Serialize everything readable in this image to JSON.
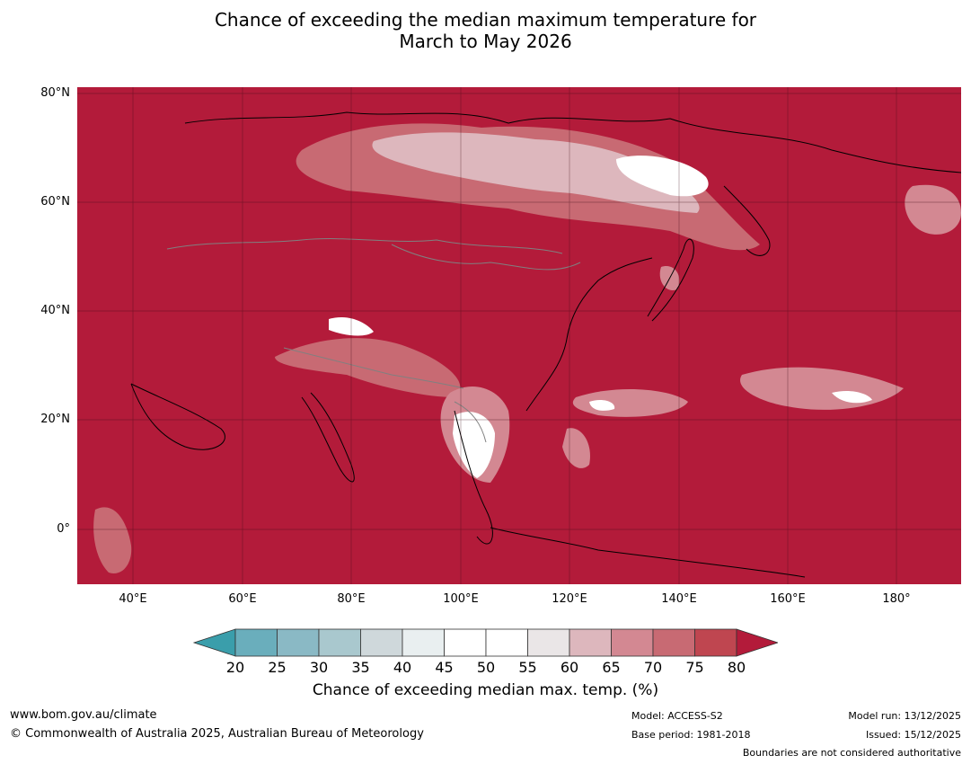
{
  "title_line1": "Chance of exceeding the median maximum temperature for",
  "title_line2": "March to May 2026",
  "map": {
    "base_color": "#b31b3a",
    "lat_labels": [
      "80°N",
      "60°N",
      "40°N",
      "20°N",
      "0°"
    ],
    "lon_labels": [
      "40°E",
      "60°E",
      "80°E",
      "100°E",
      "120°E",
      "140°E",
      "160°E",
      "180°"
    ]
  },
  "colorbar": {
    "ticks": [
      "20",
      "25",
      "30",
      "35",
      "40",
      "45",
      "50",
      "55",
      "60",
      "65",
      "70",
      "75",
      "80"
    ],
    "colors": [
      "#3a9eab",
      "#6aaebc",
      "#8ab9c5",
      "#a9c8ce",
      "#cfd8db",
      "#e9eff0",
      "#ffffff",
      "#ffffff",
      "#eae6e7",
      "#ddb7bd",
      "#d38892",
      "#c86a73",
      "#bf4650",
      "#b31b3a"
    ],
    "title": "Chance of exceeding median max. temp. (%)"
  },
  "footer": {
    "website": "www.bom.gov.au/climate",
    "copyright": "© Commonwealth of Australia 2025, Australian Bureau of Meteorology",
    "model": "Model: ACCESS-S2",
    "base_period": "Base period: 1981-2018",
    "model_run": "Model run: 13/12/2025",
    "issued": "Issued: 15/12/2025",
    "disclaimer": "Boundaries are not considered authoritative"
  }
}
